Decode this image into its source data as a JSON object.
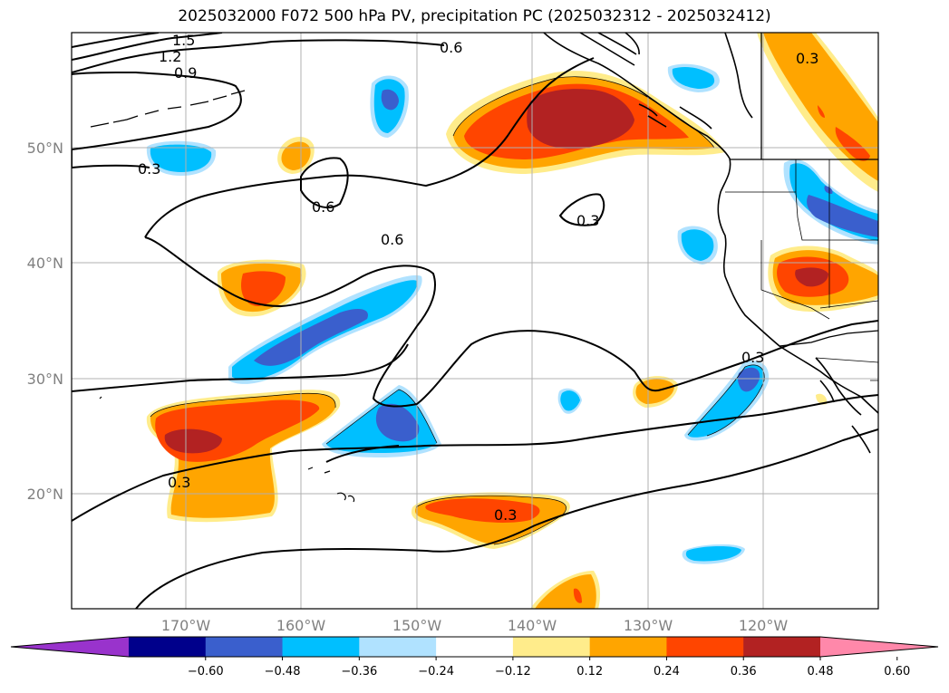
{
  "title": "2025032000 F072 500 hPa PV, precipitation PC (2025032312 - 2025032412)",
  "map": {
    "lon_labels": [
      "170°W",
      "160°W",
      "150°W",
      "140°W",
      "130°W",
      "120°W"
    ],
    "lat_labels": [
      "50°N",
      "40°N",
      "30°N",
      "20°N"
    ],
    "contour_labels": [
      {
        "id": "pv-1.5",
        "text": "1.5"
      },
      {
        "id": "pv-1.2",
        "text": "1.2"
      },
      {
        "id": "pv-0.9",
        "text": "0.9"
      },
      {
        "id": "pv-0.6-north",
        "text": "0.6"
      },
      {
        "id": "pv-0.3-west",
        "text": "0.3"
      },
      {
        "id": "pv-0.6-loop",
        "text": "0.6"
      },
      {
        "id": "pv-0.6-central",
        "text": "0.6"
      },
      {
        "id": "pv-0.3-loop",
        "text": "0.3"
      },
      {
        "id": "pv-0.3-east",
        "text": "0.3"
      },
      {
        "id": "pv-0.3-south",
        "text": "0.3"
      },
      {
        "id": "pv-0.3-subtropic",
        "text": "0.3"
      },
      {
        "id": "pv-0.3-canada",
        "text": "0.3"
      }
    ],
    "colors": {
      "neg_very_strong": "#9933cc",
      "neg_060": "#00008b",
      "neg_048": "#3a5fcd",
      "neg_036": "#00bfff",
      "neg_024": "#b0e2ff",
      "neutral": "#ffffff",
      "pos_012": "#ffec8b",
      "pos_024": "#ffa500",
      "pos_036": "#ff4500",
      "pos_048": "#b22222",
      "pos_060": "#ff88aa"
    }
  },
  "colorbar": {
    "ticks": [
      "−0.60",
      "−0.48",
      "−0.36",
      "−0.24",
      "−0.12",
      "0.12",
      "0.24",
      "0.36",
      "0.48",
      "0.60"
    ],
    "colors": [
      "#9933cc",
      "#00008b",
      "#3a5fcd",
      "#00bfff",
      "#b0e2ff",
      "#ffffff",
      "#ffec8b",
      "#ffa500",
      "#ff4500",
      "#b22222",
      "#ff88aa"
    ]
  }
}
